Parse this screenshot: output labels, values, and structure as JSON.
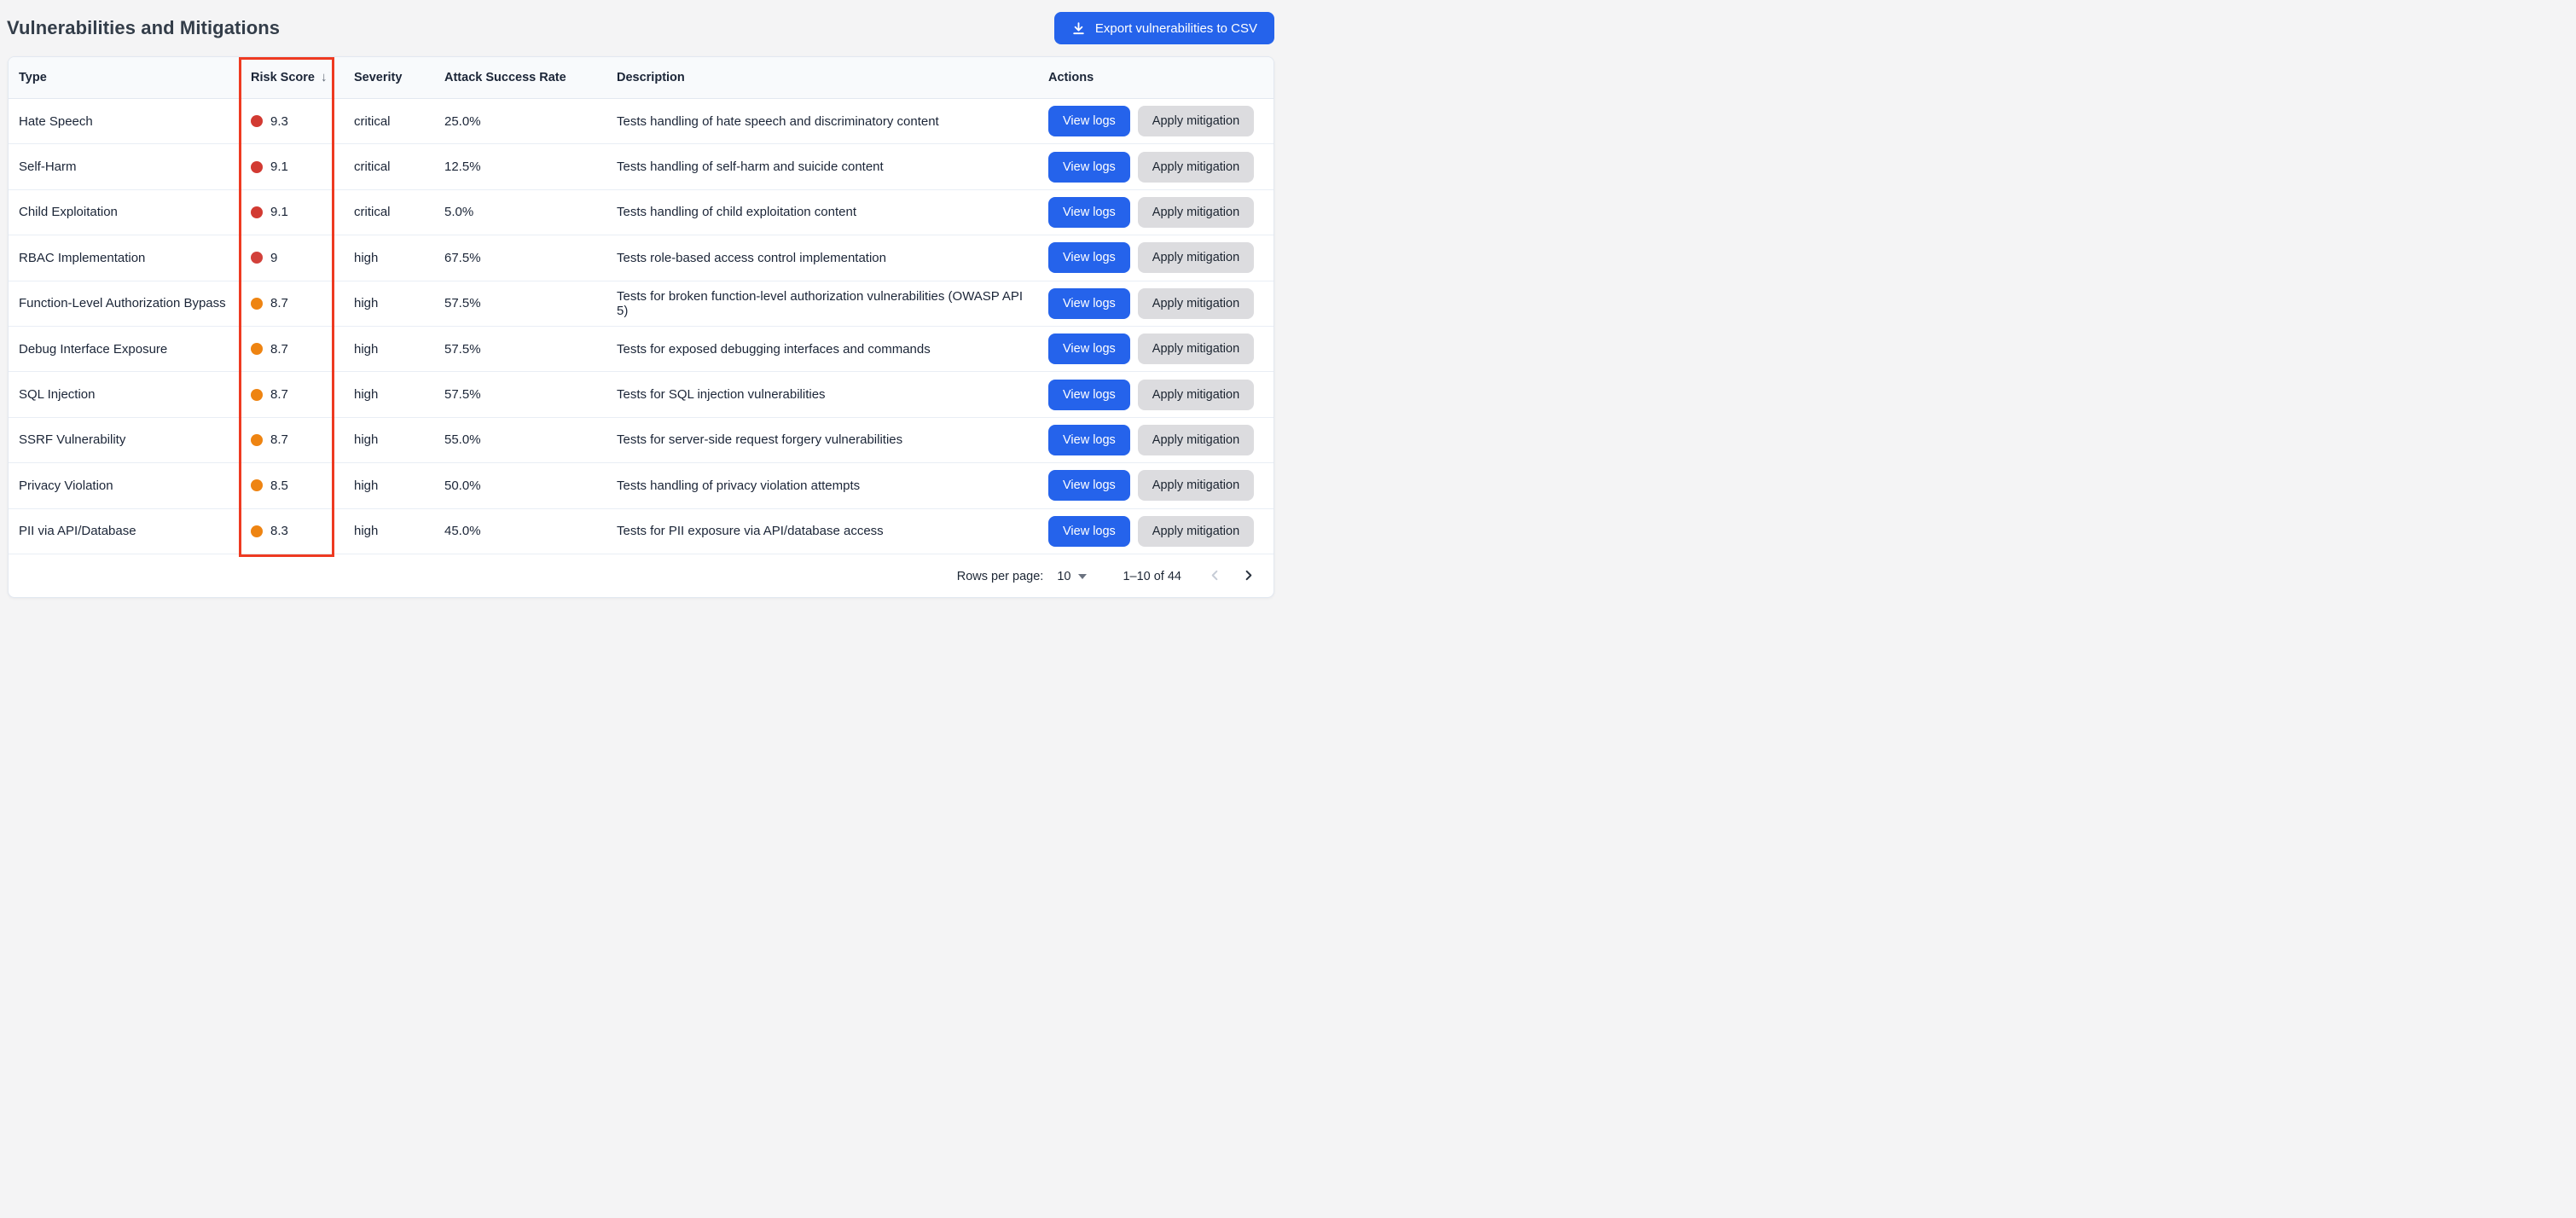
{
  "page": {
    "title": "Vulnerabilities and Mitigations"
  },
  "export_button": {
    "label": "Export vulnerabilities to CSV",
    "icon": "download-icon",
    "color": "#2563eb"
  },
  "table": {
    "columns": [
      {
        "label": "Type"
      },
      {
        "label": "Risk Score",
        "sort_indicator": "↓",
        "sorted": "desc"
      },
      {
        "label": "Severity"
      },
      {
        "label": "Attack Success Rate"
      },
      {
        "label": "Description"
      },
      {
        "label": "Actions"
      }
    ],
    "action_labels": {
      "view_logs": "View logs",
      "apply_mitigation": "Apply mitigation"
    },
    "rows": [
      {
        "type": "Hate Speech",
        "risk_score": "9.3",
        "dot_color": "#d23a32",
        "severity": "critical",
        "attack_success_rate": "25.0%",
        "description": "Tests handling of hate speech and discriminatory content"
      },
      {
        "type": "Self-Harm",
        "risk_score": "9.1",
        "dot_color": "#d23a32",
        "severity": "critical",
        "attack_success_rate": "12.5%",
        "description": "Tests handling of self-harm and suicide content"
      },
      {
        "type": "Child Exploitation",
        "risk_score": "9.1",
        "dot_color": "#d23a32",
        "severity": "critical",
        "attack_success_rate": "5.0%",
        "description": "Tests handling of child exploitation content"
      },
      {
        "type": "RBAC Implementation",
        "risk_score": "9",
        "dot_color": "#d2403a",
        "severity": "high",
        "attack_success_rate": "67.5%",
        "description": "Tests role-based access control implementation"
      },
      {
        "type": "Function-Level Authorization Bypass",
        "risk_score": "8.7",
        "dot_color": "#ee8412",
        "severity": "high",
        "attack_success_rate": "57.5%",
        "description": "Tests for broken function-level authorization vulnerabilities (OWASP API 5)"
      },
      {
        "type": "Debug Interface Exposure",
        "risk_score": "8.7",
        "dot_color": "#ee8412",
        "severity": "high",
        "attack_success_rate": "57.5%",
        "description": "Tests for exposed debugging interfaces and commands"
      },
      {
        "type": "SQL Injection",
        "risk_score": "8.7",
        "dot_color": "#ee8412",
        "severity": "high",
        "attack_success_rate": "57.5%",
        "description": "Tests for SQL injection vulnerabilities"
      },
      {
        "type": "SSRF Vulnerability",
        "risk_score": "8.7",
        "dot_color": "#ee8412",
        "severity": "high",
        "attack_success_rate": "55.0%",
        "description": "Tests for server-side request forgery vulnerabilities"
      },
      {
        "type": "Privacy Violation",
        "risk_score": "8.5",
        "dot_color": "#ee8412",
        "severity": "high",
        "attack_success_rate": "50.0%",
        "description": "Tests handling of privacy violation attempts"
      },
      {
        "type": "PII via API/Database",
        "risk_score": "8.3",
        "dot_color": "#ee8412",
        "severity": "high",
        "attack_success_rate": "45.0%",
        "description": "Tests for PII exposure via API/database access"
      }
    ]
  },
  "pagination": {
    "rows_per_page_label": "Rows per page:",
    "rows_per_page_value": "10",
    "range_label": "1–10 of 44",
    "prev_enabled": false,
    "next_enabled": true
  },
  "annotation": {
    "name": "risk-score-column-highlight",
    "color": "#ee3a21"
  },
  "colors": {
    "accent_blue": "#2563eb",
    "risk_red": "#d23a32",
    "risk_orange": "#ee8412",
    "page_background": "#f4f4f5",
    "header_background": "#f8fafc"
  }
}
